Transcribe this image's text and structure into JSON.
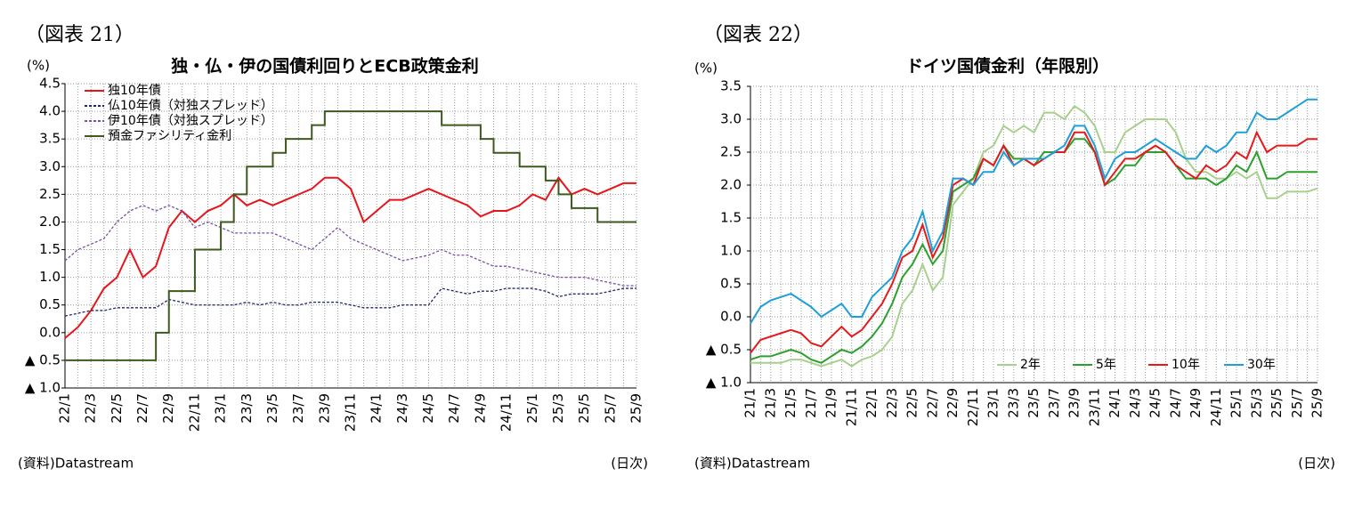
{
  "chart_data": [
    {
      "type": "line",
      "label": "（図表 21）",
      "title": "独・仏・伊の国債利回りとECB政策金利",
      "y_unit": "(%)",
      "source": "(資料)Datastream",
      "frequency": "(日次)",
      "categories": [
        "22/1",
        null,
        "22/3",
        null,
        "22/5",
        null,
        "22/7",
        null,
        "22/9",
        null,
        "22/11",
        null,
        "23/1",
        null,
        "23/3",
        null,
        "23/5",
        null,
        "23/7",
        null,
        "23/9",
        null,
        "23/11",
        null,
        "24/1",
        null,
        "24/3",
        null,
        "24/5",
        null,
        "24/7",
        null,
        "24/9",
        null,
        "24/11",
        null,
        "25/1",
        null,
        "25/3",
        null,
        "25/5",
        null,
        "25/7",
        null,
        "25/9"
      ],
      "series": [
        {
          "name": "独10年債",
          "color": "#e8141a",
          "style": "solid",
          "values": [
            -0.1,
            0.1,
            0.4,
            0.8,
            1.0,
            1.5,
            1.0,
            1.2,
            1.9,
            2.2,
            2.0,
            2.2,
            2.3,
            2.5,
            2.3,
            2.4,
            2.3,
            2.4,
            2.5,
            2.6,
            2.8,
            2.8,
            2.6,
            2.0,
            2.2,
            2.4,
            2.4,
            2.5,
            2.6,
            2.5,
            2.4,
            2.3,
            2.1,
            2.2,
            2.2,
            2.3,
            2.5,
            2.4,
            2.8,
            2.5,
            2.6,
            2.5,
            2.6,
            2.7,
            2.7
          ]
        },
        {
          "name": "仏10年債（対独スプレッド）",
          "color": "#1f2a6b",
          "style": "dashed",
          "values": [
            0.3,
            0.35,
            0.4,
            0.4,
            0.45,
            0.45,
            0.45,
            0.45,
            0.6,
            0.55,
            0.5,
            0.5,
            0.5,
            0.5,
            0.55,
            0.5,
            0.55,
            0.5,
            0.5,
            0.55,
            0.55,
            0.55,
            0.5,
            0.45,
            0.45,
            0.45,
            0.5,
            0.5,
            0.5,
            0.8,
            0.75,
            0.7,
            0.75,
            0.75,
            0.8,
            0.8,
            0.8,
            0.75,
            0.65,
            0.7,
            0.7,
            0.7,
            0.75,
            0.8,
            0.8
          ]
        },
        {
          "name": "伊10年債（対独スプレッド）",
          "color": "#7a4fa6",
          "style": "dashed",
          "values": [
            1.3,
            1.5,
            1.6,
            1.7,
            2.0,
            2.2,
            2.3,
            2.2,
            2.3,
            2.2,
            1.9,
            2.0,
            1.9,
            1.8,
            1.8,
            1.8,
            1.8,
            1.7,
            1.6,
            1.5,
            1.7,
            1.9,
            1.7,
            1.6,
            1.5,
            1.4,
            1.3,
            1.35,
            1.4,
            1.5,
            1.4,
            1.4,
            1.3,
            1.2,
            1.2,
            1.15,
            1.1,
            1.05,
            1.0,
            1.0,
            1.0,
            0.95,
            0.9,
            0.85,
            0.85
          ]
        },
        {
          "name": "預金ファシリティ金利",
          "color": "#3d5a1e",
          "style": "step",
          "values": [
            -0.5,
            -0.5,
            -0.5,
            -0.5,
            -0.5,
            -0.5,
            -0.5,
            0.0,
            0.75,
            0.75,
            1.5,
            1.5,
            2.0,
            2.5,
            3.0,
            3.0,
            3.25,
            3.5,
            3.5,
            3.75,
            4.0,
            4.0,
            4.0,
            4.0,
            4.0,
            4.0,
            4.0,
            4.0,
            4.0,
            3.75,
            3.75,
            3.75,
            3.5,
            3.25,
            3.25,
            3.0,
            3.0,
            2.75,
            2.5,
            2.25,
            2.25,
            2.0,
            2.0,
            2.0,
            2.0
          ]
        }
      ],
      "ylim": [
        -1.0,
        4.5
      ],
      "yticks": [
        4.5,
        {
          "value": 4,
          "label": "4.0"
        },
        3.5,
        {
          "value": 3,
          "label": "3.0"
        },
        2.5,
        {
          "value": 2,
          "label": "2.0"
        },
        1.5,
        {
          "value": 1,
          "label": "1.0"
        },
        0.5,
        {
          "value": 0,
          "label": "0.0"
        },
        {
          "value": -0.5,
          "label": "▲ 0.5"
        },
        {
          "value": -1,
          "label": "▲ 1.0"
        }
      ],
      "grid": true,
      "legend": "upper left"
    },
    {
      "type": "line",
      "label": "（図表 22）",
      "title": "ドイツ国債金利（年限別）",
      "y_unit": "(%)",
      "source": "(資料)Datastream",
      "frequency": "(日次)",
      "categories": [
        "21/1",
        null,
        "21/3",
        null,
        "21/5",
        null,
        "21/7",
        null,
        "21/9",
        null,
        "21/11",
        null,
        "22/1",
        null,
        "22/3",
        null,
        "22/5",
        null,
        "22/7",
        null,
        "22/9",
        null,
        "22/11",
        null,
        "23/1",
        null,
        "23/3",
        null,
        "23/5",
        null,
        "23/7",
        null,
        "23/9",
        null,
        "23/11",
        null,
        "24/1",
        null,
        "24/3",
        null,
        "24/5",
        null,
        "24/7",
        null,
        "24/9",
        null,
        "24/11",
        null,
        "25/1",
        null,
        "25/3",
        null,
        "25/5",
        null,
        "25/7",
        null,
        "25/9"
      ],
      "series": [
        {
          "name": "2年",
          "color": "#a8d08d",
          "style": "solid",
          "values": [
            -0.7,
            -0.7,
            -0.7,
            -0.7,
            -0.65,
            -0.65,
            -0.7,
            -0.75,
            -0.7,
            -0.65,
            -0.75,
            -0.65,
            -0.6,
            -0.5,
            -0.3,
            0.2,
            0.4,
            0.8,
            0.4,
            0.6,
            1.7,
            1.9,
            2.1,
            2.5,
            2.6,
            2.9,
            2.8,
            2.9,
            2.8,
            3.1,
            3.1,
            3.0,
            3.2,
            3.1,
            2.9,
            2.5,
            2.5,
            2.8,
            2.9,
            3.0,
            3.0,
            3.0,
            2.8,
            2.4,
            2.2,
            2.2,
            2.1,
            2.1,
            2.2,
            2.1,
            2.2,
            1.8,
            1.8,
            1.9,
            1.9,
            1.9,
            1.95
          ]
        },
        {
          "name": "5年",
          "color": "#2ca02c",
          "style": "solid",
          "values": [
            -0.65,
            -0.6,
            -0.6,
            -0.55,
            -0.5,
            -0.55,
            -0.65,
            -0.7,
            -0.6,
            -0.5,
            -0.55,
            -0.45,
            -0.3,
            -0.1,
            0.2,
            0.6,
            0.8,
            1.1,
            0.8,
            1.0,
            1.9,
            2.0,
            2.1,
            2.4,
            2.3,
            2.6,
            2.4,
            2.4,
            2.3,
            2.5,
            2.5,
            2.5,
            2.7,
            2.7,
            2.5,
            2.0,
            2.1,
            2.3,
            2.3,
            2.5,
            2.5,
            2.5,
            2.3,
            2.1,
            2.1,
            2.1,
            2.0,
            2.1,
            2.3,
            2.2,
            2.5,
            2.1,
            2.1,
            2.2,
            2.2,
            2.2,
            2.2
          ]
        },
        {
          "name": "10年",
          "color": "#e41a1c",
          "style": "solid",
          "values": [
            -0.55,
            -0.35,
            -0.3,
            -0.25,
            -0.2,
            -0.25,
            -0.4,
            -0.45,
            -0.3,
            -0.15,
            -0.3,
            -0.2,
            0.0,
            0.2,
            0.5,
            0.9,
            1.0,
            1.4,
            0.9,
            1.2,
            2.0,
            2.1,
            2.0,
            2.4,
            2.3,
            2.6,
            2.3,
            2.4,
            2.3,
            2.4,
            2.5,
            2.5,
            2.8,
            2.8,
            2.5,
            2.0,
            2.2,
            2.4,
            2.4,
            2.5,
            2.6,
            2.5,
            2.3,
            2.2,
            2.1,
            2.3,
            2.2,
            2.3,
            2.5,
            2.4,
            2.8,
            2.5,
            2.6,
            2.6,
            2.6,
            2.7,
            2.7
          ]
        },
        {
          "name": "30年",
          "color": "#1e9fd9",
          "style": "solid",
          "values": [
            -0.1,
            0.15,
            0.25,
            0.3,
            0.35,
            0.25,
            0.15,
            0.0,
            0.1,
            0.2,
            0.0,
            0.0,
            0.3,
            0.45,
            0.6,
            1.0,
            1.2,
            1.6,
            1.0,
            1.3,
            2.1,
            2.1,
            2.0,
            2.2,
            2.2,
            2.5,
            2.3,
            2.4,
            2.4,
            2.4,
            2.5,
            2.6,
            2.9,
            2.9,
            2.6,
            2.1,
            2.4,
            2.5,
            2.5,
            2.6,
            2.7,
            2.6,
            2.5,
            2.4,
            2.4,
            2.6,
            2.5,
            2.6,
            2.8,
            2.8,
            3.1,
            3.0,
            3.0,
            3.1,
            3.2,
            3.3,
            3.3
          ]
        }
      ],
      "ylim": [
        -1.0,
        3.5
      ],
      "yticks": [
        3.5,
        {
          "value": 3,
          "label": "3.0"
        },
        2.5,
        {
          "value": 2,
          "label": "2.0"
        },
        1.5,
        {
          "value": 1,
          "label": "1.0"
        },
        0.5,
        {
          "value": 0,
          "label": "0.0"
        },
        {
          "value": -0.5,
          "label": "▲ 0.5"
        },
        {
          "value": -1,
          "label": "▲ 1.0"
        }
      ],
      "grid": true,
      "legend": "lower right"
    }
  ]
}
